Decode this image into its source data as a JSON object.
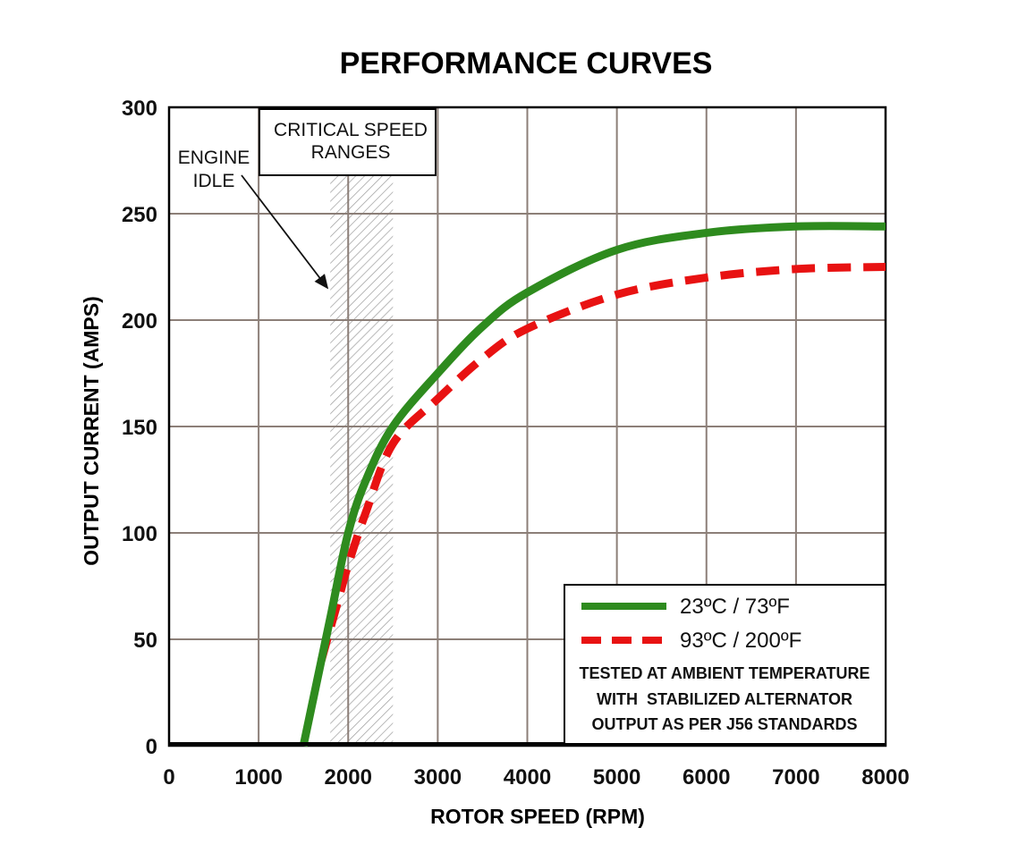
{
  "chart_data": {
    "type": "line",
    "title": "PERFORMANCE CURVES",
    "xlabel": "ROTOR SPEED (RPM)",
    "ylabel": "OUTPUT CURRENT (AMPS)",
    "xlim": [
      0,
      8000
    ],
    "ylim": [
      0,
      300
    ],
    "x_ticks": [
      0,
      1000,
      2000,
      3000,
      4000,
      5000,
      6000,
      7000,
      8000
    ],
    "y_ticks": [
      0,
      50,
      100,
      150,
      200,
      250,
      300
    ],
    "grid": true,
    "legend_position": "bottom-right",
    "series": [
      {
        "name": "23ºC / 73ºF",
        "color": "#2e8b1e",
        "style": "solid",
        "x": [
          1500,
          1650,
          1800,
          2000,
          2200,
          2500,
          3000,
          3500,
          4000,
          5000,
          6000,
          7000,
          8000
        ],
        "y": [
          0,
          30,
          60,
          100,
          125,
          150,
          175,
          197,
          213,
          233,
          241,
          244,
          244
        ]
      },
      {
        "name": "93ºC / 200ºF",
        "color": "#e81212",
        "style": "dashed",
        "x": [
          1700,
          1800,
          1900,
          2000,
          2200,
          2500,
          3000,
          3500,
          4000,
          5000,
          6000,
          7000,
          8000
        ],
        "y": [
          40,
          55,
          70,
          85,
          110,
          142,
          163,
          182,
          196,
          212,
          220,
          224,
          225
        ]
      }
    ],
    "annotations": {
      "critical_speed_ranges": {
        "label_line1": "CRITICAL SPEED",
        "label_line2": "RANGES",
        "x_range": [
          1800,
          2500
        ]
      },
      "engine_idle": {
        "label_line1": "ENGINE",
        "label_line2": "IDLE"
      },
      "note_lines": [
        "TESTED AT AMBIENT TEMPERATURE",
        "WITH  STABILIZED ALTERNATOR",
        "OUTPUT AS PER J56 STANDARDS"
      ]
    }
  }
}
